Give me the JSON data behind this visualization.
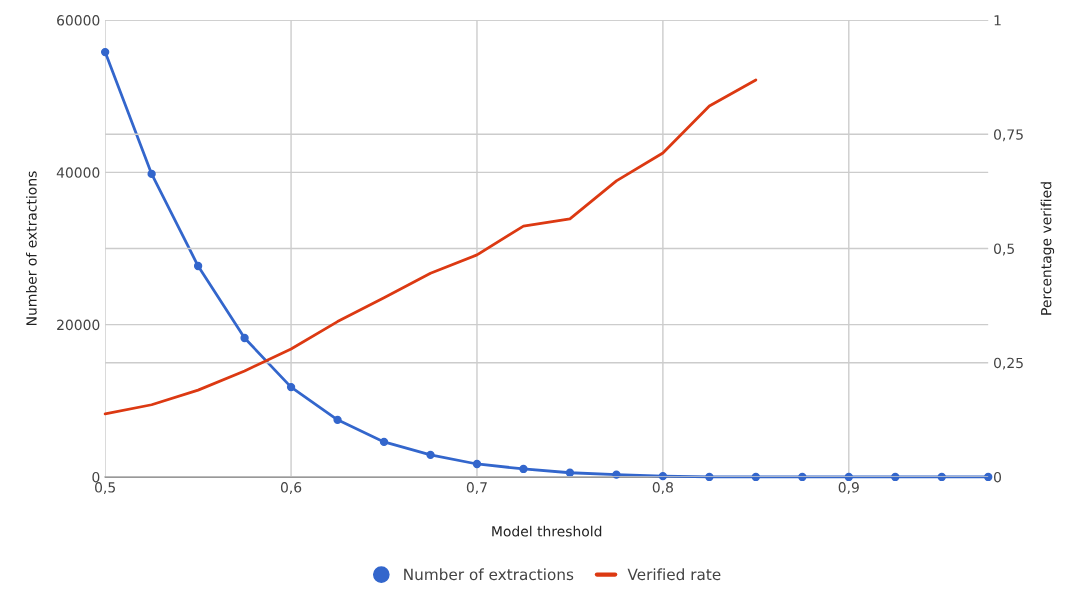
{
  "chart_data": {
    "type": "line",
    "xlabel": "Model threshold",
    "ylabel": "Number of extractions",
    "y2label": "Percentage verified",
    "x": [
      0.5,
      0.525,
      0.55,
      0.575,
      0.6,
      0.625,
      0.65,
      0.675,
      0.7,
      0.725,
      0.75,
      0.775,
      0.8,
      0.825,
      0.85,
      0.875,
      0.9,
      0.925,
      0.95,
      0.975
    ],
    "series": [
      {
        "name": "Number of extractions",
        "color": "#3366cc",
        "marker": "circle",
        "values": [
          55800,
          39800,
          27700,
          18250,
          11800,
          7500,
          4600,
          2900,
          1700,
          1050,
          550,
          300,
          100,
          0,
          0,
          0,
          0,
          0,
          0,
          0
        ]
      },
      {
        "name": "Verified rate",
        "color": "#dc3912",
        "marker": "none",
        "axis": "y2",
        "values": [
          0.138,
          0.158,
          0.19,
          0.232,
          0.28,
          0.34,
          0.392,
          0.446,
          0.486,
          0.549,
          0.565,
          0.648,
          0.709,
          0.812,
          0.869,
          null,
          null,
          null,
          null,
          null
        ]
      }
    ],
    "xlim": [
      0.5,
      0.975
    ],
    "xticks": [
      {
        "value": 0.5,
        "label": "0,5"
      },
      {
        "value": 0.6,
        "label": "0,6"
      },
      {
        "value": 0.7,
        "label": "0,7"
      },
      {
        "value": 0.8,
        "label": "0,8"
      },
      {
        "value": 0.9,
        "label": "0,9"
      }
    ],
    "ylim": [
      0,
      60000
    ],
    "yticks": [
      0,
      20000,
      40000,
      60000
    ],
    "y2lim": [
      0,
      1
    ],
    "y2ticks": [
      0,
      {
        "value": 0.25,
        "label": "0,25"
      },
      {
        "value": 0.5,
        "label": "0,5"
      },
      {
        "value": 0.75,
        "label": "0,75"
      },
      1
    ],
    "grid": true,
    "legend": "bottom",
    "line_style": "solid"
  }
}
